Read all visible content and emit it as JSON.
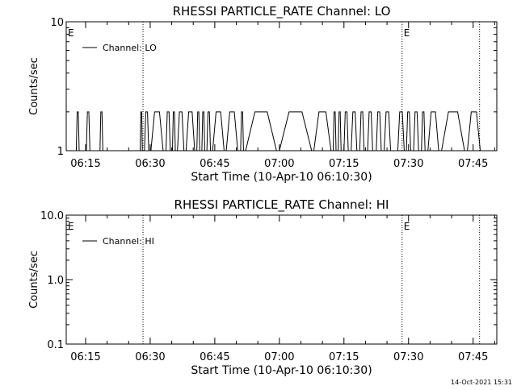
{
  "footer": {
    "timestamp": "14-Oct-2021 15:31"
  },
  "chart_data": [
    {
      "type": "line",
      "title": "RHESSI PARTICLE_RATE Channel: LO",
      "xlabel": "Start Time (10-Apr-10 06:10:30)",
      "ylabel": "Counts/sec",
      "yscale": "log",
      "xlim": [
        "06:10:30",
        "07:50:30"
      ],
      "ylim": [
        1,
        10
      ],
      "x_tick_labels": [
        "06:15",
        "06:30",
        "06:45",
        "07:00",
        "07:15",
        "07:30",
        "07:45"
      ],
      "y_tick_labels": [
        "1",
        "10"
      ],
      "legend": {
        "position": "top-left",
        "entries": [
          "Channel: LO"
        ]
      },
      "annotations": [
        {
          "text": "E",
          "x": "06:10:30"
        },
        {
          "text": "E",
          "x": "07:28:30"
        }
      ],
      "vlines": [
        "06:28:20",
        "07:28:30",
        "07:46:30"
      ],
      "series": [
        {
          "name": "Channel: LO",
          "baseline": 1,
          "peak": 2,
          "x": [
            "06:12:50",
            "06:13:30",
            "06:15:10",
            "06:16:00",
            "06:18:20",
            "06:19:00",
            "06:27:40",
            "06:28:10",
            "06:28:40",
            "06:29:40",
            "06:30:10",
            "06:33:00",
            "06:33:40",
            "06:34:40",
            "06:35:10",
            "06:35:50",
            "06:36:20",
            "06:37:50",
            "06:38:20",
            "06:40:20",
            "06:40:50",
            "06:41:30",
            "06:42:00",
            "06:42:40",
            "06:43:10",
            "06:44:00",
            "06:44:30",
            "06:47:10",
            "06:47:40",
            "06:50:20",
            "06:51:00",
            "06:51:40",
            "06:52:10",
            "06:59:20",
            "07:00:00",
            "07:07:30",
            "07:08:00",
            "07:12:00",
            "07:12:30",
            "07:13:10",
            "07:13:40",
            "07:14:20",
            "07:15:00",
            "07:16:00",
            "07:16:40",
            "07:18:00",
            "07:18:40",
            "07:19:40",
            "07:20:30",
            "07:21:40",
            "07:22:30",
            "07:23:40",
            "07:24:20",
            "07:25:50",
            "07:27:30",
            "07:29:00",
            "07:29:30",
            "07:30:30",
            "07:31:10",
            "07:32:20",
            "07:33:00",
            "07:33:50",
            "07:34:30",
            "07:37:00",
            "07:37:40",
            "07:43:00",
            "07:43:40",
            "07:46:40",
            "07:47:10"
          ]
        }
      ]
    },
    {
      "type": "line",
      "title": "RHESSI PARTICLE_RATE Channel: HI",
      "xlabel": "Start Time (10-Apr-10 06:10:30)",
      "ylabel": "Counts/sec",
      "yscale": "log",
      "xlim": [
        "06:10:30",
        "07:50:30"
      ],
      "ylim": [
        0.1,
        10
      ],
      "x_tick_labels": [
        "06:15",
        "06:30",
        "06:45",
        "07:00",
        "07:15",
        "07:30",
        "07:45"
      ],
      "y_tick_labels": [
        "0.1",
        "1.0",
        "10.0"
      ],
      "legend": {
        "position": "top-left",
        "entries": [
          "Channel: HI"
        ]
      },
      "annotations": [
        {
          "text": "E",
          "x": "06:10:30"
        },
        {
          "text": "E",
          "x": "07:28:30"
        }
      ],
      "vlines": [
        "06:28:20",
        "07:28:30",
        "07:46:30"
      ],
      "series": [
        {
          "name": "Channel: HI",
          "x": [],
          "y": []
        }
      ]
    }
  ]
}
